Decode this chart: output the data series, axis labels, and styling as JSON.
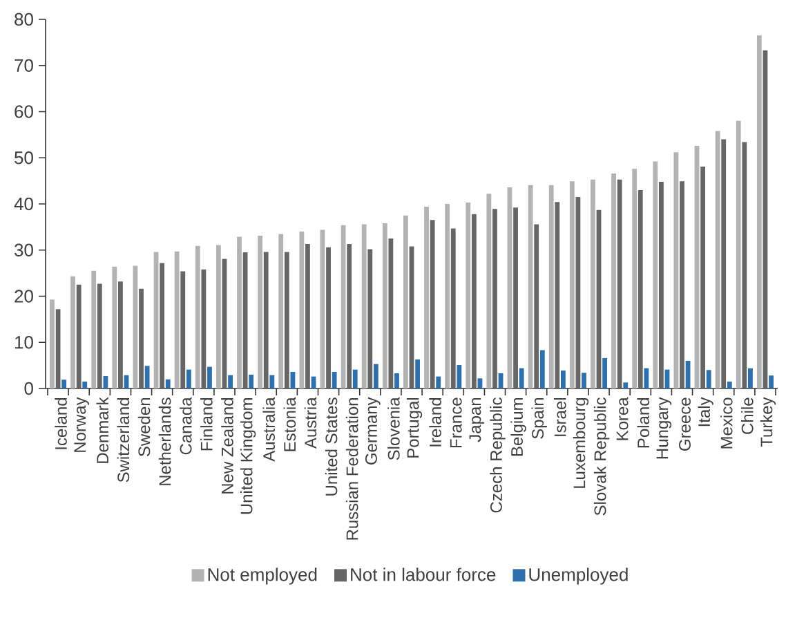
{
  "chart_data": {
    "type": "bar",
    "categories": [
      "Iceland",
      "Norway",
      "Denmark",
      "Switzerland",
      "Sweden",
      "Netherlands",
      "Canada",
      "Finland",
      "New Zealand",
      "United Kingdom",
      "Australia",
      "Estonia",
      "Austria",
      "United States",
      "Russian Federation",
      "Germany",
      "Slovenia",
      "Portugal",
      "Ireland",
      "France",
      "Japan",
      "Czech Republic",
      "Belgium",
      "Spain",
      "Israel",
      "Luxembourg",
      "Slovak Republic",
      "Korea",
      "Poland",
      "Hungary",
      "Greece",
      "Italy",
      "Mexico",
      "Chile",
      "Turkey"
    ],
    "series": [
      {
        "name": "Not employed",
        "color": "#b3b3b3",
        "values": [
          19.3,
          24.3,
          25.5,
          26.4,
          26.6,
          29.6,
          29.7,
          30.9,
          31.1,
          32.9,
          33.1,
          33.5,
          34.0,
          34.4,
          35.4,
          35.6,
          35.8,
          37.5,
          39.4,
          40.0,
          40.3,
          42.2,
          43.6,
          44.1,
          44.1,
          44.9,
          45.3,
          46.6,
          47.6,
          49.2,
          51.2,
          52.6,
          55.8,
          58.0,
          76.5
        ]
      },
      {
        "name": "Not in labour force",
        "color": "#666666",
        "values": [
          17.2,
          22.5,
          22.7,
          23.2,
          21.6,
          27.2,
          25.4,
          25.8,
          28.1,
          29.5,
          29.6,
          29.6,
          31.3,
          30.6,
          31.3,
          30.2,
          32.5,
          30.8,
          36.5,
          34.7,
          37.8,
          38.9,
          39.2,
          35.6,
          40.4,
          41.5,
          38.7,
          45.3,
          43.0,
          44.8,
          44.9,
          48.1,
          54.0,
          53.4,
          73.3
        ]
      },
      {
        "name": "Unemployed",
        "color": "#2e6fad",
        "values": [
          1.9,
          1.5,
          2.7,
          2.9,
          4.9,
          2.0,
          4.1,
          4.7,
          2.9,
          3.0,
          2.9,
          3.6,
          2.6,
          3.6,
          4.1,
          5.3,
          3.3,
          6.3,
          2.6,
          5.1,
          2.2,
          3.3,
          4.4,
          8.3,
          3.9,
          3.4,
          6.6,
          1.3,
          4.4,
          4.1,
          6.0,
          4.0,
          1.5,
          4.4,
          2.8
        ]
      }
    ],
    "ylim": [
      0,
      80
    ],
    "yticks": [
      0,
      10,
      20,
      30,
      40,
      50,
      60,
      70,
      80
    ],
    "grid": false,
    "legend": "bottom"
  }
}
